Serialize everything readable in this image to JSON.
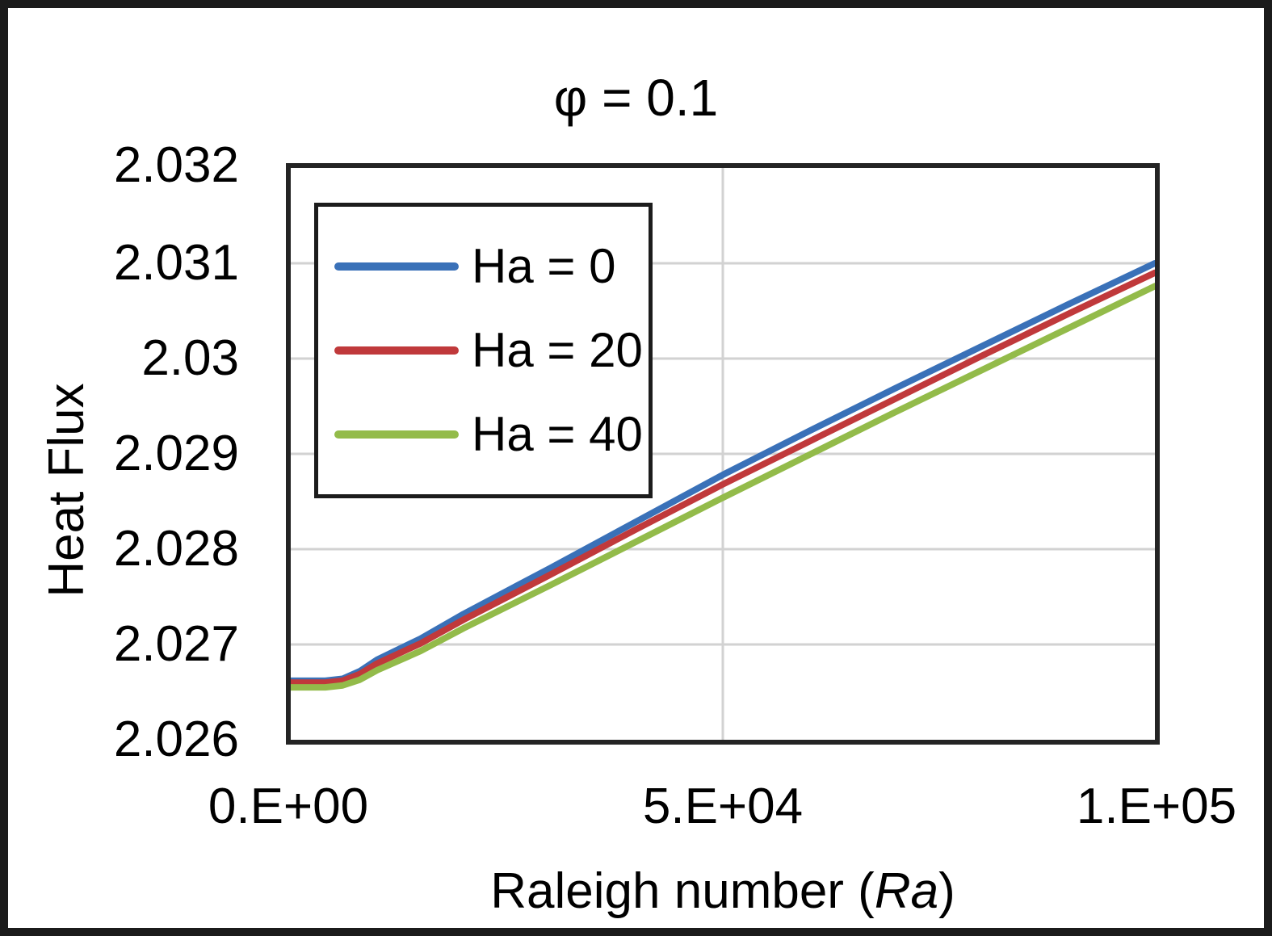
{
  "figure": {
    "title": "φ = 0.1",
    "ylabel": "Heat Flux",
    "xlabel_prefix": "Raleigh number (",
    "xlabel_italic": "Ra",
    "xlabel_suffix": ")"
  },
  "axes": {
    "y_ticks": [
      "2.032",
      "2.031",
      "2.03",
      "2.029",
      "2.028",
      "2.027",
      "2.026"
    ],
    "x_ticks": [
      "0.E+00",
      "5.E+04",
      "1.E+05"
    ]
  },
  "colors": {
    "ha0_blue": "#3a71b8",
    "ha20_red": "#c0393b",
    "ha40_green": "#93bb4a",
    "gridline": "#d2d2d2",
    "plot_border": "#242424",
    "figure_border": "#1b1b1b"
  },
  "chart_data": {
    "type": "line",
    "title": "φ = 0.1",
    "xlabel": "Raleigh number (Ra)",
    "ylabel": "Heat Flux",
    "xlim": [
      0,
      100000
    ],
    "ylim": [
      2.026,
      2.032
    ],
    "x_tick_values": [
      0,
      50000,
      100000
    ],
    "y_tick_values": [
      2.026,
      2.027,
      2.028,
      2.029,
      2.03,
      2.031,
      2.032
    ],
    "grid": true,
    "legend_position": "upper-left-inside",
    "x": [
      0,
      2000,
      4000,
      6000,
      8000,
      10000,
      15000,
      20000,
      30000,
      40000,
      50000,
      60000,
      70000,
      80000,
      90000,
      100000
    ],
    "series": [
      {
        "name": "Ha = 0",
        "color": "#3a71b8",
        "values": [
          2.02662,
          2.02662,
          2.02662,
          2.02664,
          2.02672,
          2.02684,
          2.02706,
          2.02732,
          2.0278,
          2.02829,
          2.02878,
          2.02924,
          2.02969,
          2.03013,
          2.03057,
          2.031
        ]
      },
      {
        "name": "Ha = 20",
        "color": "#c0393b",
        "values": [
          2.0266,
          2.0266,
          2.0266,
          2.02662,
          2.02669,
          2.0268,
          2.02701,
          2.02726,
          2.02773,
          2.02821,
          2.02868,
          2.02913,
          2.02958,
          2.03003,
          2.03047,
          2.0309
        ]
      },
      {
        "name": "Ha = 40",
        "color": "#93bb4a",
        "values": [
          2.02655,
          2.02655,
          2.02655,
          2.02657,
          2.02663,
          2.02673,
          2.02693,
          2.02717,
          2.02762,
          2.02808,
          2.02854,
          2.02899,
          2.02944,
          2.02988,
          2.03032,
          2.03076
        ]
      }
    ]
  }
}
